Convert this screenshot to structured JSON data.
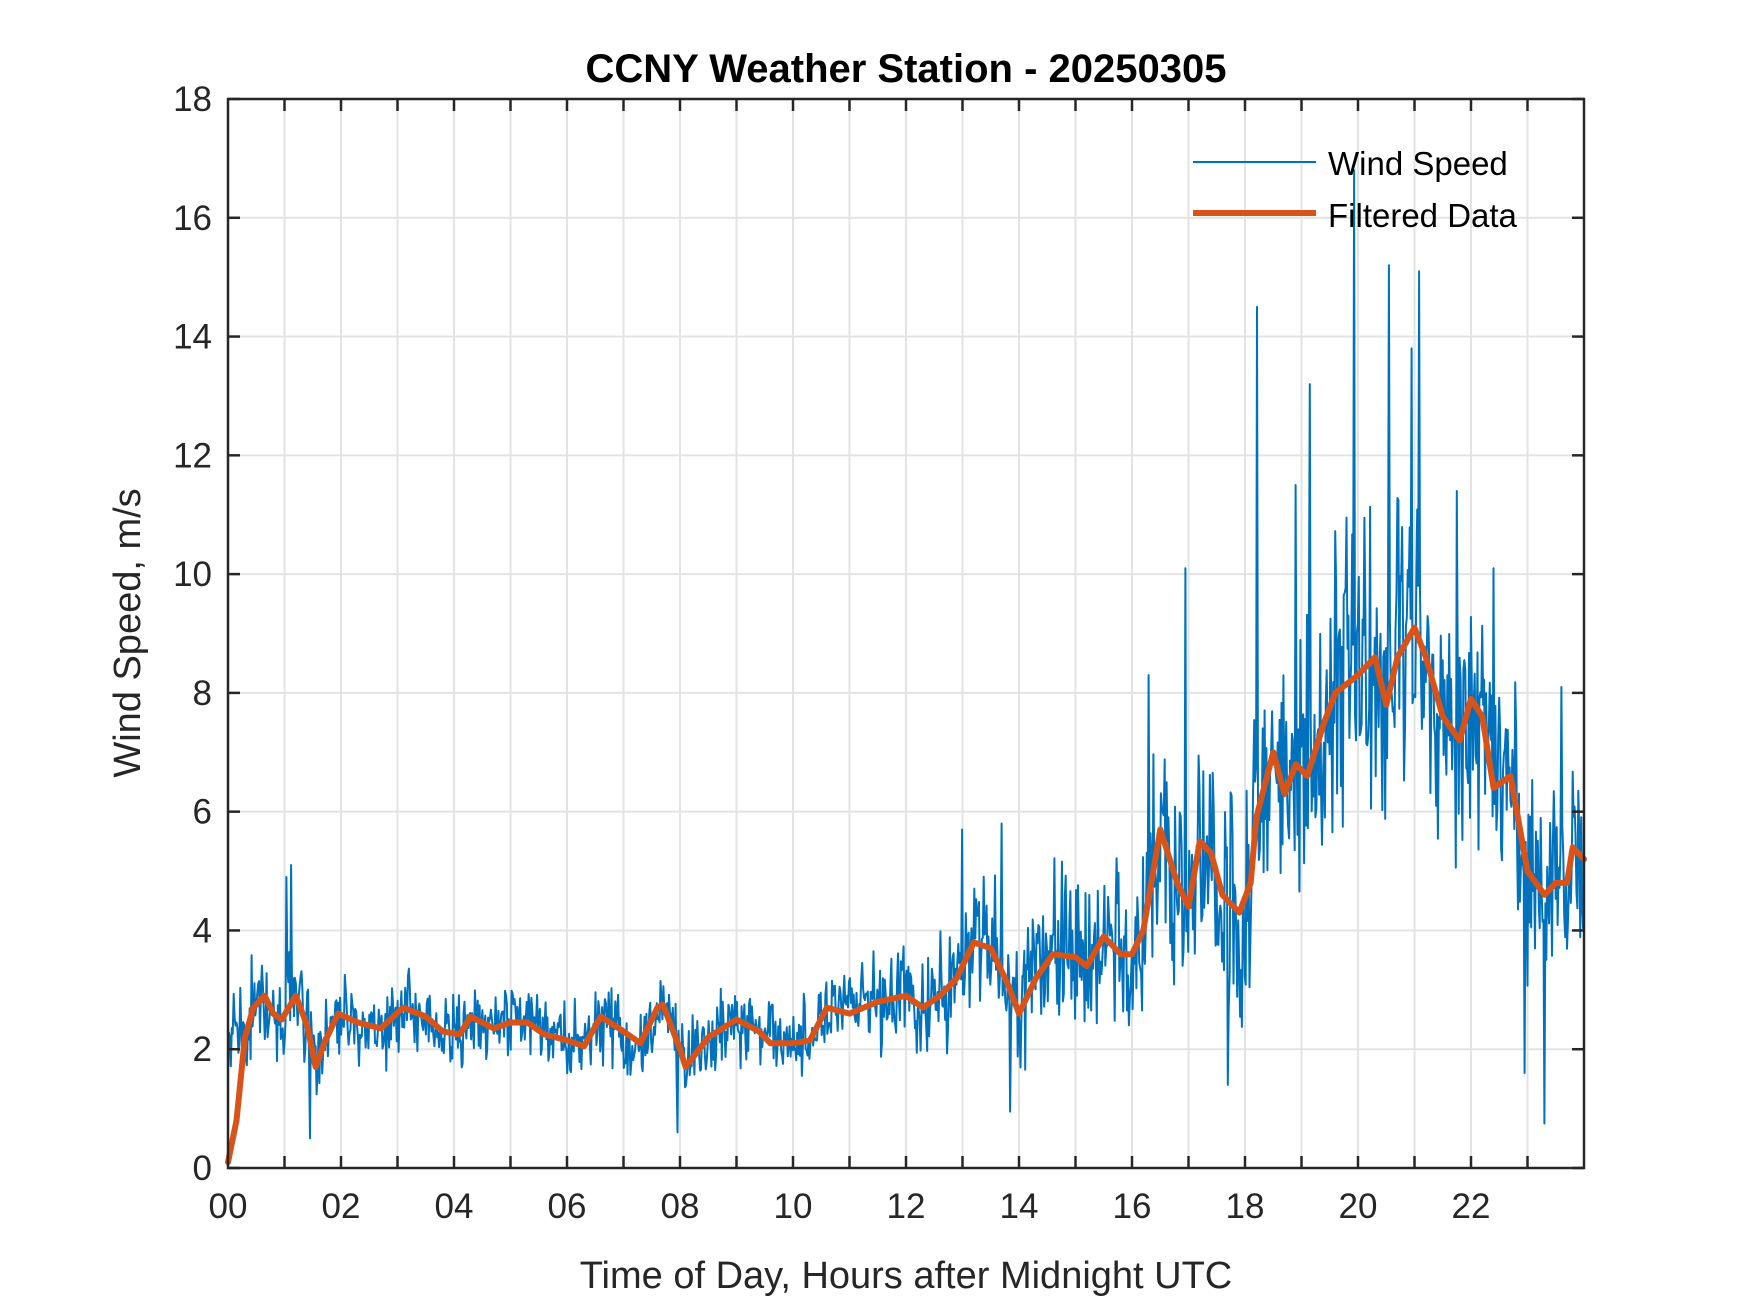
{
  "chart_data": {
    "type": "line",
    "title": "CCNY Weather Station - 20250305",
    "xlabel": "Time of Day, Hours after Midnight UTC",
    "ylabel": "Wind Speed, m/s",
    "xlim": [
      0,
      24
    ],
    "ylim": [
      0,
      18
    ],
    "xticks": [
      0,
      2,
      4,
      6,
      8,
      10,
      12,
      14,
      16,
      18,
      20,
      22
    ],
    "xtick_labels": [
      "00",
      "02",
      "04",
      "06",
      "08",
      "10",
      "12",
      "14",
      "16",
      "18",
      "20",
      "22"
    ],
    "xminor_grid_step": 1,
    "yticks": [
      0,
      2,
      4,
      6,
      8,
      10,
      12,
      14,
      16,
      18
    ],
    "ytick_labels": [
      "0",
      "2",
      "4",
      "6",
      "8",
      "10",
      "12",
      "14",
      "16",
      "18"
    ],
    "grid": true,
    "legend": {
      "position": "top-right",
      "boxed": false
    },
    "series": [
      {
        "name": "Wind Speed",
        "color": "#0072BD",
        "style": "thin",
        "note": "high-frequency raw samples; noisy around the filtered trend",
        "envelope": {
          "x": [
            0,
            1,
            2,
            4,
            6,
            8,
            10,
            11,
            12,
            13,
            14,
            15,
            16,
            16.5,
            17,
            18,
            19,
            20,
            21,
            22,
            23,
            24
          ],
          "amplitude": [
            1.0,
            1.1,
            0.8,
            0.8,
            0.8,
            0.9,
            0.8,
            0.9,
            1.1,
            1.5,
            1.7,
            1.7,
            1.8,
            2.4,
            2.4,
            2.6,
            3.0,
            3.6,
            3.4,
            2.8,
            2.3,
            2.3
          ]
        },
        "peaks": [
          {
            "x": 1.03,
            "y": 4.9
          },
          {
            "x": 1.12,
            "y": 5.1
          },
          {
            "x": 1.45,
            "y": 0.5
          },
          {
            "x": 7.95,
            "y": 0.6
          },
          {
            "x": 13.0,
            "y": 5.7
          },
          {
            "x": 13.7,
            "y": 5.8
          },
          {
            "x": 13.85,
            "y": 0.95
          },
          {
            "x": 16.3,
            "y": 8.3
          },
          {
            "x": 16.95,
            "y": 10.1
          },
          {
            "x": 17.7,
            "y": 1.4
          },
          {
            "x": 18.22,
            "y": 14.5
          },
          {
            "x": 18.9,
            "y": 11.5
          },
          {
            "x": 19.15,
            "y": 13.2
          },
          {
            "x": 19.93,
            "y": 16.8
          },
          {
            "x": 20.55,
            "y": 15.2
          },
          {
            "x": 20.95,
            "y": 13.8
          },
          {
            "x": 21.08,
            "y": 15.1
          },
          {
            "x": 21.75,
            "y": 11.4
          },
          {
            "x": 22.4,
            "y": 10.1
          },
          {
            "x": 22.95,
            "y": 1.6
          },
          {
            "x": 23.3,
            "y": 0.75
          },
          {
            "x": 23.6,
            "y": 8.1
          }
        ]
      },
      {
        "name": "Filtered Data",
        "color": "#D95319",
        "style": "thick",
        "x": [
          0.0,
          0.15,
          0.3,
          0.45,
          0.65,
          0.8,
          0.95,
          1.2,
          1.4,
          1.55,
          1.7,
          1.95,
          2.3,
          2.7,
          3.1,
          3.5,
          3.8,
          4.1,
          4.3,
          4.7,
          5.0,
          5.3,
          5.6,
          6.0,
          6.3,
          6.6,
          7.0,
          7.3,
          7.6,
          7.7,
          8.0,
          8.1,
          8.5,
          9.0,
          9.4,
          9.6,
          10.0,
          10.3,
          10.6,
          11.0,
          11.5,
          12.0,
          12.3,
          12.6,
          12.9,
          13.2,
          13.5,
          13.8,
          14.0,
          14.3,
          14.6,
          15.0,
          15.2,
          15.5,
          15.8,
          16.0,
          16.2,
          16.5,
          16.8,
          17.0,
          17.2,
          17.4,
          17.6,
          17.9,
          18.1,
          18.2,
          18.5,
          18.7,
          18.9,
          19.1,
          19.4,
          19.6,
          20.0,
          20.3,
          20.5,
          20.7,
          21.0,
          21.2,
          21.5,
          21.8,
          22.0,
          22.2,
          22.4,
          22.7,
          23.0,
          23.3,
          23.5,
          23.7,
          23.8,
          24.0
        ],
        "y": [
          0.1,
          0.8,
          2.2,
          2.7,
          2.9,
          2.6,
          2.5,
          2.9,
          2.4,
          1.7,
          2.1,
          2.6,
          2.45,
          2.35,
          2.7,
          2.55,
          2.3,
          2.25,
          2.55,
          2.35,
          2.45,
          2.45,
          2.25,
          2.15,
          2.05,
          2.55,
          2.3,
          2.1,
          2.7,
          2.75,
          2.0,
          1.7,
          2.2,
          2.5,
          2.3,
          2.1,
          2.1,
          2.15,
          2.7,
          2.6,
          2.8,
          2.9,
          2.7,
          2.9,
          3.2,
          3.8,
          3.7,
          3.1,
          2.6,
          3.2,
          3.6,
          3.55,
          3.4,
          3.9,
          3.6,
          3.6,
          4.0,
          5.7,
          4.8,
          4.4,
          5.5,
          5.3,
          4.6,
          4.3,
          4.8,
          5.9,
          7.0,
          6.3,
          6.8,
          6.6,
          7.5,
          8.0,
          8.3,
          8.6,
          7.8,
          8.6,
          9.1,
          8.6,
          7.6,
          7.2,
          7.9,
          7.6,
          6.4,
          6.6,
          5.0,
          4.6,
          4.8,
          4.8,
          5.4,
          5.2
        ]
      }
    ]
  }
}
